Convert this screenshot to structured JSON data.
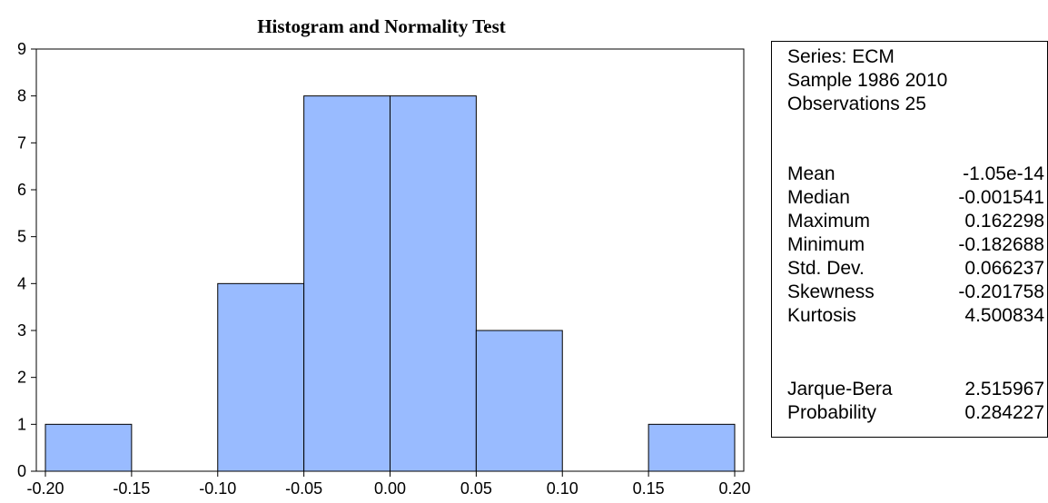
{
  "chart_data": {
    "type": "bar",
    "title": "Histogram and Normality Test",
    "bins": [
      {
        "from": -0.2,
        "to": -0.15,
        "count": 1
      },
      {
        "from": -0.15,
        "to": -0.1,
        "count": 0
      },
      {
        "from": -0.1,
        "to": -0.05,
        "count": 4
      },
      {
        "from": -0.05,
        "to": 0.0,
        "count": 8
      },
      {
        "from": 0.0,
        "to": 0.05,
        "count": 8
      },
      {
        "from": 0.05,
        "to": 0.1,
        "count": 3
      },
      {
        "from": 0.1,
        "to": 0.15,
        "count": 0
      },
      {
        "from": 0.15,
        "to": 0.2,
        "count": 1
      }
    ],
    "xlim": [
      -0.2,
      0.2
    ],
    "ylim": [
      0,
      9
    ],
    "x_ticks": [
      "-0.20",
      "-0.15",
      "-0.10",
      "-0.05",
      "0.00",
      "0.05",
      "0.10",
      "0.15",
      "0.20"
    ],
    "y_ticks": [
      "0",
      "1",
      "2",
      "3",
      "4",
      "5",
      "6",
      "7",
      "8",
      "9"
    ],
    "xlabel": "",
    "ylabel": "",
    "grid": false,
    "bar_color": "#99BBFF"
  },
  "stats": {
    "series": "Series: ECM",
    "sample": "Sample 1986 2010",
    "observations": "Observations 25",
    "rows": [
      {
        "label": "Mean",
        "value": "-1.05e-14"
      },
      {
        "label": "Median",
        "value": "-0.001541"
      },
      {
        "label": "Maximum",
        "value": "0.162298"
      },
      {
        "label": "Minimum",
        "value": "-0.182688"
      },
      {
        "label": "Std. Dev.",
        "value": "0.066237"
      },
      {
        "label": "Skewness",
        "value": "-0.201758"
      },
      {
        "label": "Kurtosis",
        "value": "4.500834"
      }
    ],
    "test_rows": [
      {
        "label": "Jarque-Bera",
        "value": "2.515967"
      },
      {
        "label": "Probability",
        "value": "0.284227"
      }
    ]
  }
}
